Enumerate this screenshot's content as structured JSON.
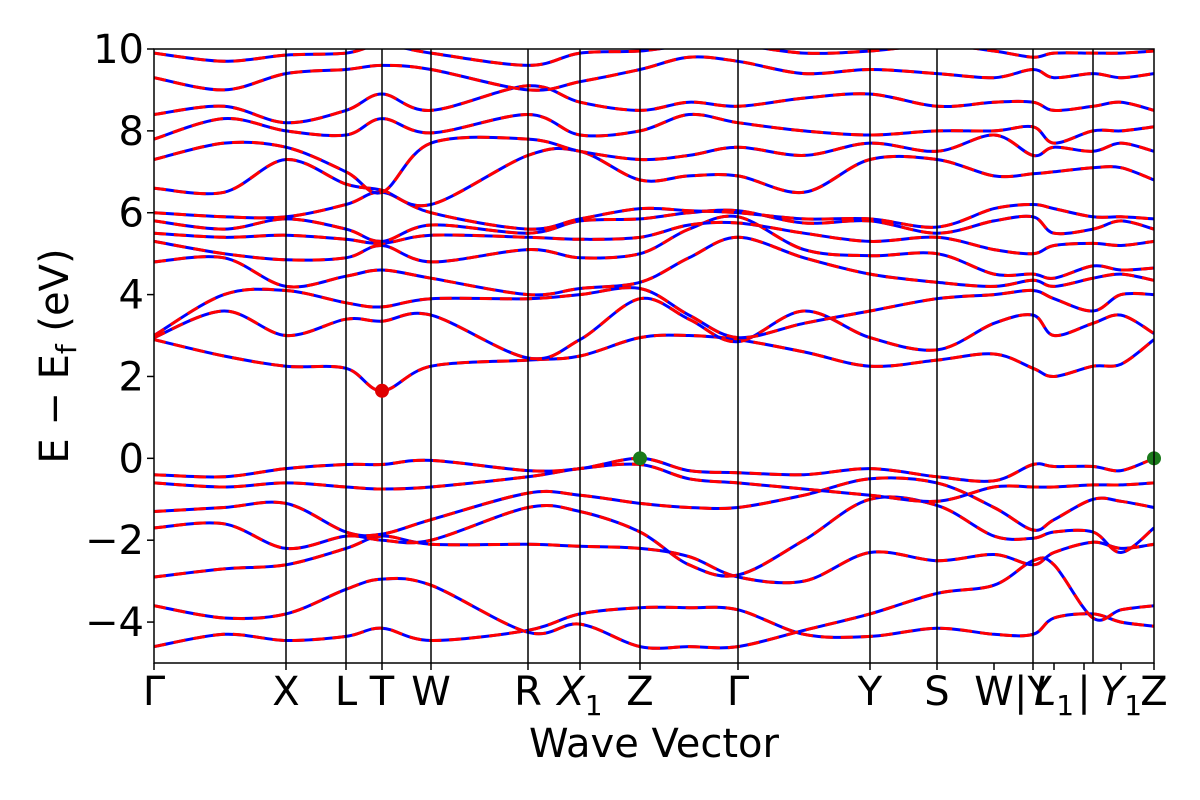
{
  "chart_data": {
    "type": "line",
    "title": "",
    "xlabel": "Wave Vector",
    "ylabel": "E − E_f (eV)",
    "ylabel_parts": {
      "main": "E − E",
      "sub": "f",
      "unit": " (eV)"
    },
    "ylim": [
      -5,
      10
    ],
    "xlim": [
      0,
      1
    ],
    "y_ticks": [
      -4,
      -2,
      0,
      2,
      4,
      6,
      8,
      10
    ],
    "y_tick_labels": [
      "−4",
      "−2",
      "0",
      "2",
      "4",
      "6",
      "8",
      "10"
    ],
    "kpoints": [
      {
        "label": "Γ",
        "sub": "",
        "x": 0.0
      },
      {
        "label": "X",
        "sub": "",
        "x": 0.132
      },
      {
        "label": "L",
        "sub": "",
        "x": 0.192
      },
      {
        "label": "T",
        "sub": "",
        "x": 0.228
      },
      {
        "label": "W",
        "sub": "",
        "x": 0.277
      },
      {
        "label": "R",
        "sub": "",
        "x": 0.374
      },
      {
        "label": "X",
        "sub": "1",
        "x": 0.426
      },
      {
        "label": "Z",
        "sub": "",
        "x": 0.486
      },
      {
        "label": "Γ",
        "sub": "",
        "x": 0.584
      },
      {
        "label": "Y",
        "sub": "",
        "x": 0.716
      },
      {
        "label": "S",
        "sub": "",
        "x": 0.783
      },
      {
        "label": "W",
        "sub": "",
        "x": 0.84
      },
      {
        "label": "|Y",
        "sub": "",
        "x": 0.879
      },
      {
        "label": "L",
        "sub": "1",
        "x": 0.9
      },
      {
        "label": "|",
        "sub": "",
        "x": 0.93
      },
      {
        "label": "Y",
        "sub": "1",
        "x": 0.967
      },
      {
        "label": "Z",
        "sub": "",
        "x": 1.0
      }
    ],
    "vertical_lines_x": [
      0.132,
      0.192,
      0.228,
      0.277,
      0.374,
      0.426,
      0.486,
      0.584,
      0.716,
      0.783,
      0.879,
      0.939
    ],
    "series_style": [
      {
        "color": "#0000ff",
        "dash": ""
      },
      {
        "color": "#ff0000",
        "dash": "12 8"
      }
    ],
    "markers": [
      {
        "label": "CBM",
        "x": 0.228,
        "y": 1.65,
        "color": "#e00000"
      },
      {
        "label": "VBM",
        "x": 0.486,
        "y": 0.0,
        "color": "#1a7a1a"
      },
      {
        "label": "VBM",
        "x": 1.0,
        "y": 0.0,
        "color": "#1a7a1a"
      }
    ],
    "series": [
      {
        "x": [
          0,
          0.07,
          0.132,
          0.192,
          0.228,
          0.277,
          0.374,
          0.426,
          0.486,
          0.535,
          0.584,
          0.65,
          0.716,
          0.783,
          0.84,
          0.879,
          0.9,
          0.939,
          0.967,
          1.0
        ],
        "y": [
          -4.6,
          -4.3,
          -4.45,
          -4.35,
          -4.15,
          -4.45,
          -4.2,
          -3.8,
          -3.65,
          -3.65,
          -3.7,
          -4.3,
          -4.35,
          -4.15,
          -4.3,
          -4.3,
          -3.9,
          -3.8,
          -4.0,
          -4.1
        ]
      },
      {
        "x": [
          0,
          0.07,
          0.132,
          0.192,
          0.228,
          0.277,
          0.374,
          0.426,
          0.486,
          0.535,
          0.584,
          0.65,
          0.716,
          0.783,
          0.84,
          0.879,
          0.9,
          0.939,
          0.967,
          1.0
        ],
        "y": [
          -3.6,
          -3.9,
          -3.8,
          -3.2,
          -2.95,
          -3.1,
          -4.25,
          -4.05,
          -4.6,
          -4.6,
          -4.6,
          -4.2,
          -3.8,
          -3.3,
          -3.1,
          -2.5,
          -2.6,
          -3.9,
          -3.7,
          -3.6
        ]
      },
      {
        "x": [
          0,
          0.07,
          0.132,
          0.192,
          0.228,
          0.277,
          0.374,
          0.426,
          0.486,
          0.535,
          0.584,
          0.65,
          0.716,
          0.783,
          0.84,
          0.879,
          0.9,
          0.939,
          0.967,
          1.0
        ],
        "y": [
          -2.9,
          -2.7,
          -2.6,
          -2.2,
          -1.9,
          -2.1,
          -2.1,
          -2.15,
          -2.2,
          -2.4,
          -2.9,
          -3.0,
          -2.3,
          -2.5,
          -2.35,
          -2.6,
          -2.3,
          -2.05,
          -2.2,
          -2.1
        ]
      },
      {
        "x": [
          0,
          0.07,
          0.132,
          0.192,
          0.228,
          0.277,
          0.374,
          0.426,
          0.486,
          0.535,
          0.584,
          0.65,
          0.716,
          0.783,
          0.84,
          0.879,
          0.9,
          0.939,
          0.967,
          1.0
        ],
        "y": [
          -1.7,
          -1.6,
          -2.2,
          -1.9,
          -2.0,
          -2.0,
          -1.2,
          -1.3,
          -1.8,
          -2.6,
          -2.85,
          -2.0,
          -1.0,
          -1.15,
          -1.9,
          -1.95,
          -1.8,
          -1.8,
          -2.3,
          -1.7
        ]
      },
      {
        "x": [
          0,
          0.07,
          0.132,
          0.192,
          0.228,
          0.277,
          0.374,
          0.426,
          0.486,
          0.535,
          0.584,
          0.65,
          0.716,
          0.783,
          0.84,
          0.879,
          0.9,
          0.939,
          0.967,
          1.0
        ],
        "y": [
          -1.3,
          -1.2,
          -1.1,
          -1.8,
          -1.85,
          -1.5,
          -0.85,
          -0.9,
          -1.1,
          -1.2,
          -1.2,
          -0.9,
          -0.5,
          -0.6,
          -1.2,
          -1.75,
          -1.5,
          -1.0,
          -1.05,
          -1.2
        ]
      },
      {
        "x": [
          0,
          0.07,
          0.132,
          0.192,
          0.228,
          0.277,
          0.374,
          0.426,
          0.486,
          0.535,
          0.584,
          0.65,
          0.716,
          0.783,
          0.84,
          0.879,
          0.9,
          0.939,
          0.967,
          1.0
        ],
        "y": [
          -0.6,
          -0.7,
          -0.6,
          -0.7,
          -0.75,
          -0.7,
          -0.45,
          -0.25,
          -0.15,
          -0.5,
          -0.6,
          -0.75,
          -0.9,
          -1.05,
          -0.7,
          -0.7,
          -0.7,
          -0.65,
          -0.65,
          -0.6
        ]
      },
      {
        "x": [
          0,
          0.07,
          0.132,
          0.192,
          0.228,
          0.277,
          0.374,
          0.426,
          0.486,
          0.535,
          0.584,
          0.65,
          0.716,
          0.783,
          0.84,
          0.879,
          0.9,
          0.939,
          0.967,
          1.0
        ],
        "y": [
          -0.4,
          -0.45,
          -0.25,
          -0.15,
          -0.15,
          -0.05,
          -0.3,
          -0.25,
          0.0,
          -0.3,
          -0.35,
          -0.4,
          -0.25,
          -0.45,
          -0.55,
          -0.15,
          -0.2,
          -0.2,
          -0.3,
          0.0
        ]
      },
      {
        "x": [
          0,
          0.07,
          0.132,
          0.192,
          0.228,
          0.277,
          0.374,
          0.426,
          0.486,
          0.535,
          0.584,
          0.65,
          0.716,
          0.783,
          0.84,
          0.879,
          0.9,
          0.939,
          0.967,
          1.0
        ],
        "y": [
          2.9,
          2.5,
          2.25,
          2.2,
          1.65,
          2.25,
          2.4,
          2.5,
          2.95,
          3.0,
          2.9,
          2.6,
          2.25,
          2.4,
          2.55,
          2.2,
          2.0,
          2.25,
          2.3,
          2.9
        ]
      },
      {
        "x": [
          0,
          0.07,
          0.132,
          0.192,
          0.228,
          0.277,
          0.374,
          0.426,
          0.486,
          0.535,
          0.584,
          0.65,
          0.716,
          0.783,
          0.84,
          0.879,
          0.9,
          0.939,
          0.967,
          1.0
        ],
        "y": [
          2.95,
          3.6,
          3.0,
          3.4,
          3.35,
          3.5,
          2.45,
          2.9,
          3.9,
          3.4,
          2.85,
          3.6,
          2.95,
          2.65,
          3.3,
          3.5,
          3.0,
          3.3,
          3.5,
          3.05
        ]
      },
      {
        "x": [
          0,
          0.07,
          0.132,
          0.192,
          0.228,
          0.277,
          0.374,
          0.426,
          0.486,
          0.535,
          0.584,
          0.65,
          0.716,
          0.783,
          0.84,
          0.879,
          0.9,
          0.939,
          0.967,
          1.0
        ],
        "y": [
          3.0,
          4.0,
          4.1,
          3.8,
          3.7,
          3.9,
          3.9,
          4.0,
          4.15,
          3.5,
          2.95,
          3.3,
          3.6,
          3.9,
          4.0,
          4.1,
          3.9,
          3.6,
          4.0,
          4.0
        ]
      },
      {
        "x": [
          0,
          0.07,
          0.132,
          0.192,
          0.228,
          0.277,
          0.374,
          0.426,
          0.486,
          0.535,
          0.584,
          0.65,
          0.716,
          0.783,
          0.84,
          0.879,
          0.9,
          0.939,
          0.967,
          1.0
        ],
        "y": [
          4.8,
          4.9,
          4.2,
          4.45,
          4.6,
          4.4,
          4.0,
          4.15,
          4.3,
          4.9,
          5.4,
          4.9,
          4.5,
          4.3,
          4.2,
          4.35,
          4.2,
          4.4,
          4.5,
          4.35
        ]
      },
      {
        "x": [
          0,
          0.07,
          0.132,
          0.192,
          0.228,
          0.277,
          0.374,
          0.426,
          0.486,
          0.535,
          0.584,
          0.65,
          0.716,
          0.783,
          0.84,
          0.879,
          0.9,
          0.939,
          0.967,
          1.0
        ],
        "y": [
          5.3,
          5.0,
          4.85,
          4.9,
          5.2,
          4.8,
          5.1,
          4.9,
          5.0,
          5.6,
          5.9,
          5.1,
          4.95,
          5.0,
          4.5,
          4.5,
          4.4,
          4.7,
          4.6,
          4.65
        ]
      },
      {
        "x": [
          0,
          0.07,
          0.132,
          0.192,
          0.228,
          0.277,
          0.374,
          0.426,
          0.486,
          0.535,
          0.584,
          0.65,
          0.716,
          0.783,
          0.84,
          0.879,
          0.9,
          0.939,
          0.967,
          1.0
        ],
        "y": [
          5.5,
          5.4,
          5.45,
          5.35,
          5.25,
          5.45,
          5.4,
          5.35,
          5.4,
          5.7,
          5.75,
          5.5,
          5.3,
          5.4,
          5.1,
          5.0,
          5.2,
          5.25,
          5.2,
          5.3
        ]
      },
      {
        "x": [
          0,
          0.07,
          0.132,
          0.192,
          0.228,
          0.277,
          0.374,
          0.426,
          0.486,
          0.535,
          0.584,
          0.65,
          0.716,
          0.783,
          0.84,
          0.879,
          0.9,
          0.939,
          0.967,
          1.0
        ],
        "y": [
          5.8,
          5.6,
          5.85,
          5.6,
          5.3,
          5.7,
          5.5,
          5.8,
          5.85,
          6.0,
          6.05,
          5.75,
          5.8,
          5.5,
          5.8,
          5.9,
          5.5,
          5.6,
          5.8,
          5.6
        ]
      },
      {
        "x": [
          0,
          0.07,
          0.132,
          0.192,
          0.228,
          0.277,
          0.374,
          0.426,
          0.486,
          0.535,
          0.584,
          0.65,
          0.716,
          0.783,
          0.84,
          0.879,
          0.9,
          0.939,
          0.967,
          1.0
        ],
        "y": [
          6.0,
          5.9,
          5.9,
          6.2,
          6.5,
          6.0,
          5.6,
          5.85,
          6.1,
          6.05,
          6.0,
          5.85,
          5.85,
          5.65,
          6.1,
          6.2,
          6.1,
          5.9,
          5.9,
          5.85
        ]
      },
      {
        "x": [
          0,
          0.07,
          0.132,
          0.192,
          0.228,
          0.277,
          0.374,
          0.426,
          0.486,
          0.535,
          0.584,
          0.65,
          0.716,
          0.783,
          0.84,
          0.879,
          0.9,
          0.939,
          0.967,
          1.0
        ],
        "y": [
          6.6,
          6.5,
          7.3,
          6.7,
          6.55,
          6.2,
          7.4,
          7.5,
          6.8,
          6.9,
          6.9,
          6.5,
          7.3,
          7.3,
          6.9,
          6.95,
          7.0,
          7.1,
          7.1,
          6.8
        ]
      },
      {
        "x": [
          0,
          0.07,
          0.132,
          0.192,
          0.228,
          0.277,
          0.374,
          0.426,
          0.486,
          0.535,
          0.584,
          0.65,
          0.716,
          0.783,
          0.84,
          0.879,
          0.9,
          0.939,
          0.967,
          1.0
        ],
        "y": [
          7.3,
          7.7,
          7.6,
          7.0,
          6.5,
          7.7,
          7.8,
          7.5,
          7.3,
          7.4,
          7.6,
          7.4,
          7.7,
          7.5,
          7.9,
          7.4,
          7.6,
          7.5,
          7.7,
          7.5
        ]
      },
      {
        "x": [
          0,
          0.07,
          0.132,
          0.192,
          0.228,
          0.277,
          0.374,
          0.426,
          0.486,
          0.535,
          0.584,
          0.65,
          0.716,
          0.783,
          0.84,
          0.879,
          0.9,
          0.939,
          0.967,
          1.0
        ],
        "y": [
          7.8,
          8.3,
          8.0,
          7.9,
          8.3,
          7.95,
          8.4,
          7.9,
          8.0,
          8.4,
          8.2,
          8.0,
          7.9,
          8.0,
          8.0,
          8.1,
          7.7,
          8.0,
          8.0,
          8.1
        ]
      },
      {
        "x": [
          0,
          0.07,
          0.132,
          0.192,
          0.228,
          0.277,
          0.374,
          0.426,
          0.486,
          0.535,
          0.584,
          0.65,
          0.716,
          0.783,
          0.84,
          0.879,
          0.9,
          0.939,
          0.967,
          1.0
        ],
        "y": [
          8.4,
          8.6,
          8.2,
          8.5,
          8.9,
          8.5,
          9.1,
          8.7,
          8.5,
          8.7,
          8.6,
          8.8,
          8.9,
          8.6,
          8.7,
          8.7,
          8.5,
          8.6,
          8.7,
          8.5
        ]
      },
      {
        "x": [
          0,
          0.07,
          0.132,
          0.192,
          0.228,
          0.277,
          0.374,
          0.426,
          0.486,
          0.535,
          0.584,
          0.65,
          0.716,
          0.783,
          0.84,
          0.879,
          0.9,
          0.939,
          0.967,
          1.0
        ],
        "y": [
          9.3,
          9.0,
          9.4,
          9.5,
          9.6,
          9.5,
          9.0,
          9.2,
          9.5,
          9.8,
          9.7,
          9.4,
          9.5,
          9.4,
          9.3,
          9.5,
          9.3,
          9.4,
          9.3,
          9.4
        ]
      },
      {
        "x": [
          0,
          0.07,
          0.132,
          0.192,
          0.228,
          0.277,
          0.374,
          0.426,
          0.486,
          0.535,
          0.584,
          0.65,
          0.716,
          0.783,
          0.84,
          0.879,
          0.9,
          0.939,
          0.967,
          1.0
        ],
        "y": [
          9.9,
          9.7,
          9.85,
          9.9,
          10.1,
          9.9,
          9.6,
          9.9,
          9.95,
          10.1,
          10.1,
          9.9,
          9.95,
          10.1,
          9.95,
          9.8,
          9.9,
          9.9,
          9.9,
          9.95
        ]
      }
    ]
  }
}
